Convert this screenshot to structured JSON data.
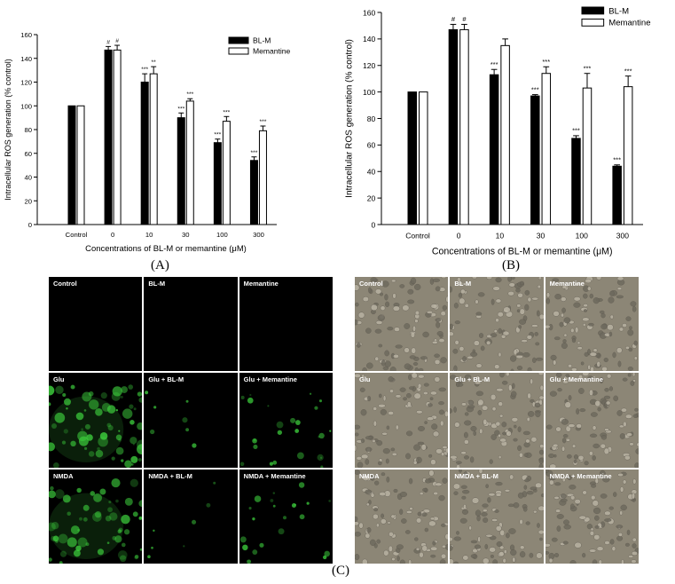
{
  "panel_labels": {
    "a": "(A)",
    "b": "(B)",
    "c": "(C)"
  },
  "chart_data": [
    {
      "type": "bar",
      "panel": "A",
      "ylabel": "Intracellular ROS generation (% control)",
      "xlabel": "Concentrations of BL-M or memantine (μM)",
      "ylim": [
        0,
        160
      ],
      "yticks": [
        "0",
        "20",
        "40",
        "60",
        "80",
        "100",
        "120",
        "140",
        "160"
      ],
      "categories": [
        "Control",
        "0",
        "10",
        "30",
        "100",
        "300"
      ],
      "legend_position": "top-right",
      "colors": {
        "blm": "#000000",
        "memantine": "#ffffff"
      },
      "series": [
        {
          "name": "BL-M",
          "values": [
            100,
            147,
            120,
            90,
            69,
            54
          ],
          "err": [
            0,
            3,
            7,
            4,
            3,
            3
          ],
          "labels": [
            "",
            "#",
            "***",
            "***",
            "***",
            "***"
          ]
        },
        {
          "name": "Memantine",
          "values": [
            100,
            147,
            127,
            104,
            87,
            79
          ],
          "err": [
            0,
            4,
            6,
            2,
            4,
            4
          ],
          "labels": [
            "",
            "#",
            "**",
            "***",
            "***",
            "***"
          ]
        }
      ]
    },
    {
      "type": "bar",
      "panel": "B",
      "ylabel": "Intracellular ROS generation (% control)",
      "xlabel": "Concentrations of BL-M or memantine (μM)",
      "ylim": [
        0,
        160
      ],
      "yticks": [
        "0",
        "20",
        "40",
        "60",
        "80",
        "100",
        "120",
        "140",
        "160"
      ],
      "categories": [
        "Control",
        "0",
        "10",
        "30",
        "100",
        "300"
      ],
      "legend_position": "top-right",
      "colors": {
        "blm": "#000000",
        "memantine": "#ffffff"
      },
      "series": [
        {
          "name": "BL-M",
          "values": [
            100,
            147,
            113,
            97,
            65,
            44
          ],
          "err": [
            0,
            4,
            4,
            1,
            2,
            1
          ],
          "labels": [
            "",
            "#",
            "***",
            "***",
            "***",
            "***"
          ]
        },
        {
          "name": "Memantine",
          "values": [
            100,
            147,
            135,
            114,
            103,
            104
          ],
          "err": [
            0,
            4,
            5,
            5,
            11,
            8
          ],
          "labels": [
            "",
            "#",
            "",
            "***",
            "***",
            "***"
          ]
        }
      ]
    }
  ],
  "micrographs": {
    "fluorescence": {
      "labels": [
        "Control",
        "BL-M",
        "Memantine",
        "Glu",
        "Glu + BL-M",
        "Glu + Memantine",
        "NMDA",
        "NMDA + BL-M",
        "NMDA + Memantine"
      ],
      "intensity": [
        0,
        0,
        0,
        0.9,
        0.1,
        0.35,
        0.8,
        0.1,
        0.3
      ],
      "background": "#000000",
      "signal_color": "#3ccc3c"
    },
    "brightfield": {
      "labels": [
        "Control",
        "BL-M",
        "Memantine",
        "Glu",
        "Glu + BL-M",
        "Glu + Memantine",
        "NMDA",
        "NMDA + BL-M",
        "NMDA + Memantine"
      ],
      "background": "#8c8676"
    }
  }
}
